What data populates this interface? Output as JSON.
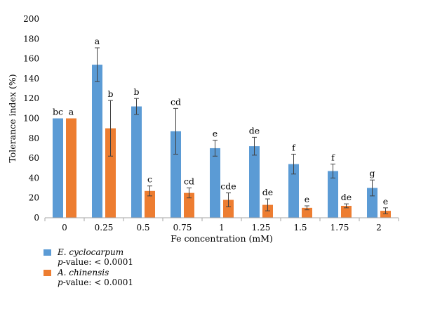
{
  "chart_data": {
    "type": "bar",
    "title": "",
    "xlabel": "Fe concentration (mM)",
    "ylabel": "Tolerance index (%)",
    "ylim": [
      0,
      200
    ],
    "yticks": [
      0,
      20,
      40,
      60,
      80,
      100,
      120,
      140,
      160,
      180,
      200
    ],
    "categories": [
      "0",
      "0.25",
      "0.5",
      "0.75",
      "1",
      "1.25",
      "1.5",
      "1.75",
      "2"
    ],
    "grid": false,
    "legend_position": "bottom-left",
    "series": [
      {
        "name": "E. cyclocarpum",
        "color": "#5b9bd5",
        "values": [
          100,
          154,
          112,
          87,
          70,
          72,
          54,
          47,
          30
        ],
        "errors": [
          0,
          17,
          8,
          23,
          8,
          9,
          10,
          7,
          8
        ],
        "letters": [
          "bc",
          "a",
          "b",
          "cd",
          "e",
          "de",
          "f",
          "f",
          "g"
        ],
        "pvalue_label": "p",
        "pvalue_text": "-value: < 0.0001"
      },
      {
        "name": "A. chinensis",
        "color": "#ed7d31",
        "values": [
          100,
          90,
          27,
          25,
          18,
          13,
          10,
          12,
          7
        ],
        "errors": [
          0,
          28,
          5,
          5,
          7,
          6,
          2,
          2,
          3
        ],
        "letters": [
          "a",
          "b",
          "c",
          "cd",
          "cde",
          "de",
          "e",
          "de",
          "e"
        ],
        "pvalue_label": "p",
        "pvalue_text": "-value: < 0.0001"
      }
    ]
  }
}
